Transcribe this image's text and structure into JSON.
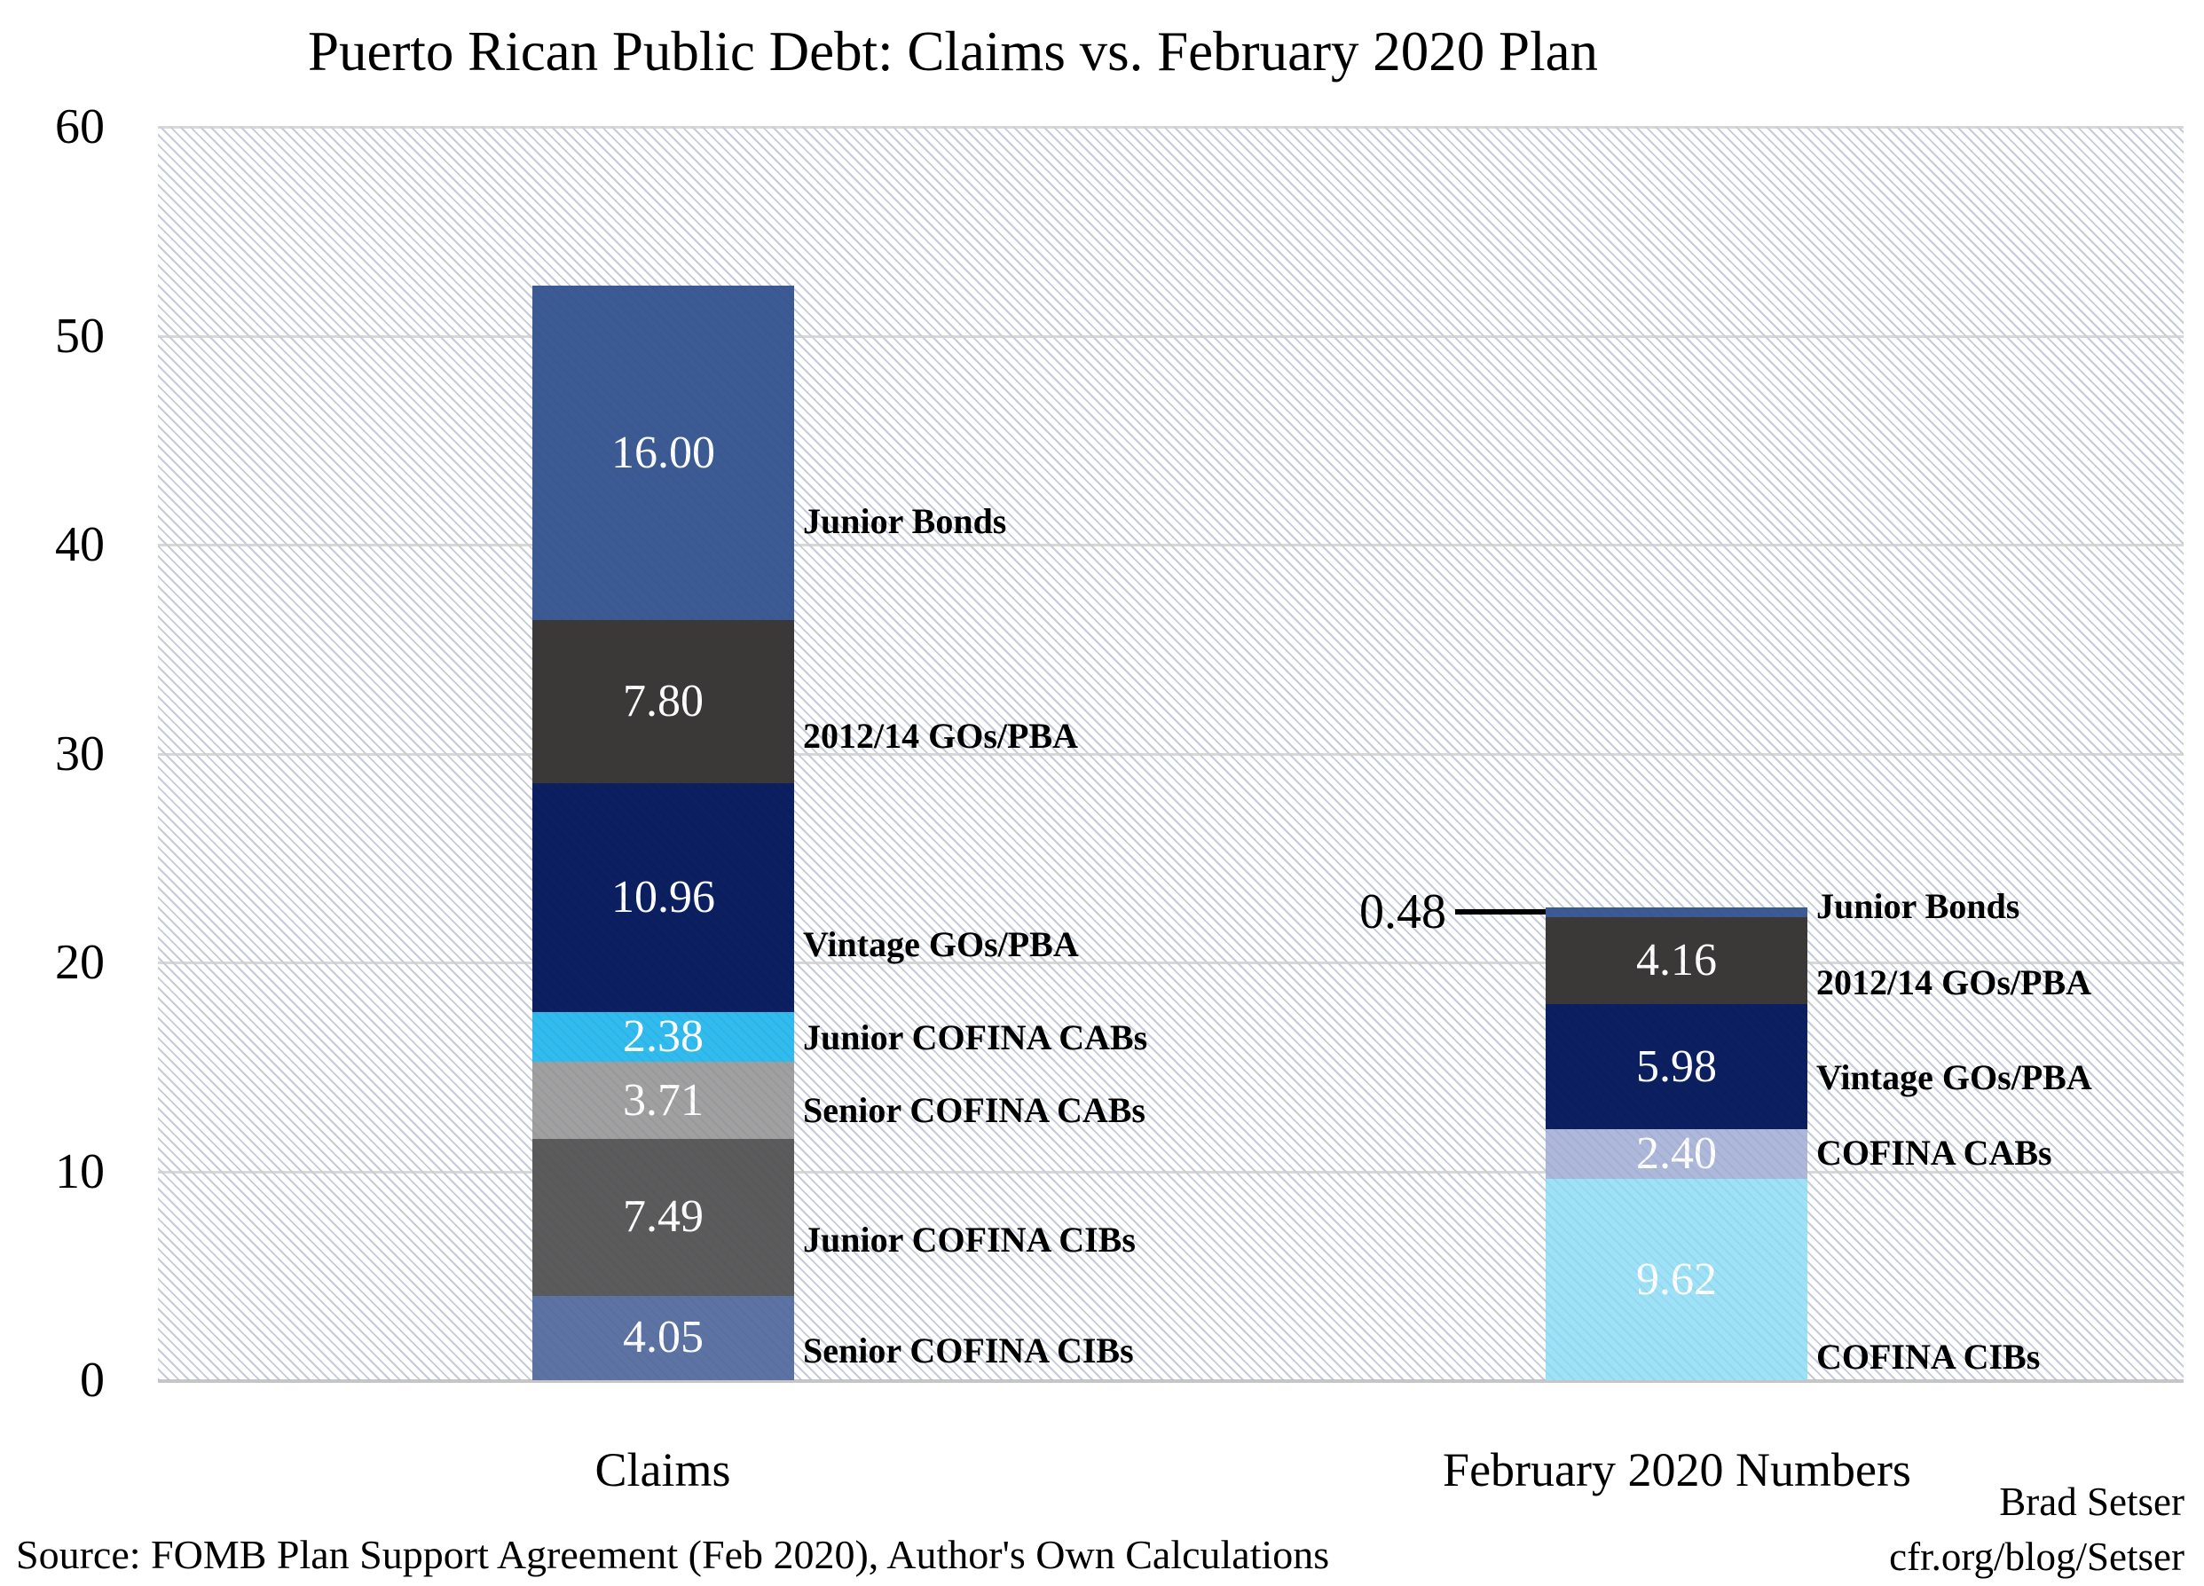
{
  "title": "Puerto Rican Public Debt: Claims vs. February 2020 Plan",
  "source": "Source: FOMB Plan Support Agreement (Feb 2020), Author's Own Calculations",
  "credit": {
    "author": "Brad Setser",
    "site": "cfr.org/blog/Setser"
  },
  "chart_data": {
    "type": "bar",
    "stacked": true,
    "title": "Puerto Rican Public Debt: Claims vs. February 2020 Plan",
    "xlabel": "",
    "ylabel": "",
    "ylim": [
      0,
      60
    ],
    "yticks": [
      0,
      10,
      20,
      30,
      40,
      50,
      60
    ],
    "grid": true,
    "legend_position": "segment-labels-right-of-bars",
    "categories": [
      "Claims",
      "February 2020 Numbers"
    ],
    "stacks": [
      {
        "category": "Claims",
        "total": 52.39,
        "segments": [
          {
            "label": "Senior COFINA CIBs",
            "value": 4.05,
            "color": "#5d73a3"
          },
          {
            "label": "Junior COFINA CIBs",
            "value": 7.49,
            "color": "#5b5b5b"
          },
          {
            "label": "Senior COFINA CABs",
            "value": 3.71,
            "color": "#a0a0a0"
          },
          {
            "label": "Junior COFINA CABs",
            "value": 2.38,
            "color": "#30bcee"
          },
          {
            "label": "Vintage GOs/PBA",
            "value": 10.96,
            "color": "#0b1f60"
          },
          {
            "label": "2012/14 GOs/PBA",
            "value": 7.8,
            "color": "#3b3838"
          },
          {
            "label": "Junior Bonds",
            "value": 16.0,
            "color": "#3c5a94"
          }
        ]
      },
      {
        "category": "February 2020 Numbers",
        "total": 22.64,
        "segments": [
          {
            "label": "COFINA CIBs",
            "value": 9.62,
            "color": "#9ee2f8"
          },
          {
            "label": "COFINA CABs",
            "value": 2.4,
            "color": "#adb8db"
          },
          {
            "label": "Vintage GOs/PBA",
            "value": 5.98,
            "color": "#0b1f60"
          },
          {
            "label": "2012/14 GOs/PBA",
            "value": 4.16,
            "color": "#3b3838"
          },
          {
            "label": "Junior Bonds",
            "value": 0.48,
            "color": "#3c5a94",
            "value_outside": true
          }
        ]
      }
    ]
  }
}
